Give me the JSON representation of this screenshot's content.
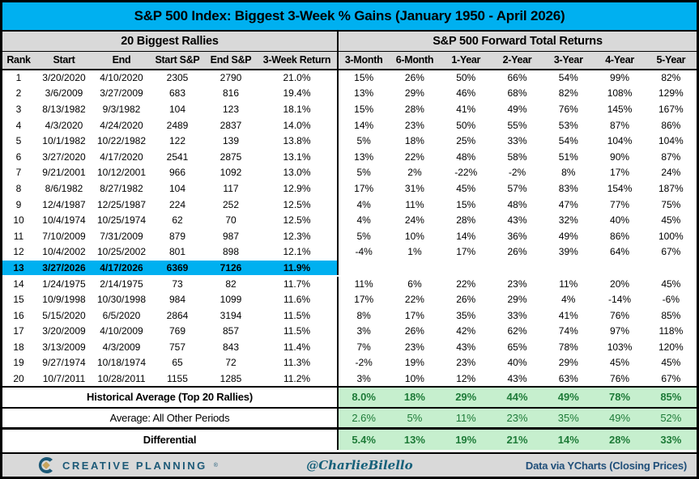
{
  "title": "S&P 500 Index: Biggest 3-Week % Gains (January 1950 - April 2026)",
  "footer": {
    "brand": "CREATIVE PLANNING",
    "brand_mark": "®",
    "handle": "@CharlieBilello",
    "source": "Data via YCharts (Closing Prices)"
  },
  "colors": {
    "title_bg": "#00B0F0",
    "header_bg": "#D9D9D9",
    "positive_bg": "#C6EFCE",
    "positive_text": "#2E9C52",
    "negative_bg": "#F8C9D2",
    "negative_text": "#AA3A44",
    "highlight_row_bg": "#00B0F0",
    "highlight_row_right_bg": "#D9D9D9",
    "footer_bg": "#D9D9D9",
    "brand_blue": "#1C5977",
    "brand_gold": "#C9A45C",
    "source_text": "#1F4E79"
  },
  "chart_data": {
    "type": "table",
    "title": "S&P 500 Index: Biggest 3-Week % Gains (January 1950 - April 2026)",
    "section_left": "20 Biggest Rallies",
    "section_right": "S&P 500 Forward Total Returns",
    "columns_left": [
      "Rank",
      "Start",
      "End",
      "Start S&P",
      "End S&P",
      "3-Week Return"
    ],
    "columns_right": [
      "3-Month",
      "6-Month",
      "1-Year",
      "2-Year",
      "3-Year",
      "4-Year",
      "5-Year"
    ],
    "rows": [
      {
        "rank": "1",
        "start": "3/20/2020",
        "end": "4/10/2020",
        "start_sp": "2305",
        "end_sp": "2790",
        "three_week": "21.0%",
        "returns": [
          "15%",
          "26%",
          "50%",
          "66%",
          "54%",
          "99%",
          "82%"
        ],
        "highlight": false
      },
      {
        "rank": "2",
        "start": "3/6/2009",
        "end": "3/27/2009",
        "start_sp": "683",
        "end_sp": "816",
        "three_week": "19.4%",
        "returns": [
          "13%",
          "29%",
          "46%",
          "68%",
          "82%",
          "108%",
          "129%"
        ],
        "highlight": false
      },
      {
        "rank": "3",
        "start": "8/13/1982",
        "end": "9/3/1982",
        "start_sp": "104",
        "end_sp": "123",
        "three_week": "18.1%",
        "returns": [
          "15%",
          "28%",
          "41%",
          "49%",
          "76%",
          "145%",
          "167%"
        ],
        "highlight": false
      },
      {
        "rank": "4",
        "start": "4/3/2020",
        "end": "4/24/2020",
        "start_sp": "2489",
        "end_sp": "2837",
        "three_week": "14.0%",
        "returns": [
          "14%",
          "23%",
          "50%",
          "55%",
          "53%",
          "87%",
          "86%"
        ],
        "highlight": false
      },
      {
        "rank": "5",
        "start": "10/1/1982",
        "end": "10/22/1982",
        "start_sp": "122",
        "end_sp": "139",
        "three_week": "13.8%",
        "returns": [
          "5%",
          "18%",
          "25%",
          "33%",
          "54%",
          "104%",
          "104%"
        ],
        "highlight": false
      },
      {
        "rank": "6",
        "start": "3/27/2020",
        "end": "4/17/2020",
        "start_sp": "2541",
        "end_sp": "2875",
        "three_week": "13.1%",
        "returns": [
          "13%",
          "22%",
          "48%",
          "58%",
          "51%",
          "90%",
          "87%"
        ],
        "highlight": false
      },
      {
        "rank": "7",
        "start": "9/21/2001",
        "end": "10/12/2001",
        "start_sp": "966",
        "end_sp": "1092",
        "three_week": "13.0%",
        "returns": [
          "5%",
          "2%",
          "-22%",
          "-2%",
          "8%",
          "17%",
          "24%"
        ],
        "highlight": false
      },
      {
        "rank": "8",
        "start": "8/6/1982",
        "end": "8/27/1982",
        "start_sp": "104",
        "end_sp": "117",
        "three_week": "12.9%",
        "returns": [
          "17%",
          "31%",
          "45%",
          "57%",
          "83%",
          "154%",
          "187%"
        ],
        "highlight": false
      },
      {
        "rank": "9",
        "start": "12/4/1987",
        "end": "12/25/1987",
        "start_sp": "224",
        "end_sp": "252",
        "three_week": "12.5%",
        "returns": [
          "4%",
          "11%",
          "15%",
          "48%",
          "47%",
          "77%",
          "75%"
        ],
        "highlight": false
      },
      {
        "rank": "10",
        "start": "10/4/1974",
        "end": "10/25/1974",
        "start_sp": "62",
        "end_sp": "70",
        "three_week": "12.5%",
        "returns": [
          "4%",
          "24%",
          "28%",
          "43%",
          "32%",
          "40%",
          "45%"
        ],
        "highlight": false
      },
      {
        "rank": "11",
        "start": "7/10/2009",
        "end": "7/31/2009",
        "start_sp": "879",
        "end_sp": "987",
        "three_week": "12.3%",
        "returns": [
          "5%",
          "10%",
          "14%",
          "36%",
          "49%",
          "86%",
          "100%"
        ],
        "highlight": false
      },
      {
        "rank": "12",
        "start": "10/4/2002",
        "end": "10/25/2002",
        "start_sp": "801",
        "end_sp": "898",
        "three_week": "12.1%",
        "returns": [
          "-4%",
          "1%",
          "17%",
          "26%",
          "39%",
          "64%",
          "67%"
        ],
        "highlight": false
      },
      {
        "rank": "13",
        "start": "3/27/2026",
        "end": "4/17/2026",
        "start_sp": "6369",
        "end_sp": "7126",
        "three_week": "11.9%",
        "returns": [
          "",
          "",
          "",
          "",
          "",
          "",
          ""
        ],
        "highlight": true
      },
      {
        "rank": "14",
        "start": "1/24/1975",
        "end": "2/14/1975",
        "start_sp": "73",
        "end_sp": "82",
        "three_week": "11.7%",
        "returns": [
          "11%",
          "6%",
          "22%",
          "23%",
          "11%",
          "20%",
          "45%"
        ],
        "highlight": false
      },
      {
        "rank": "15",
        "start": "10/9/1998",
        "end": "10/30/1998",
        "start_sp": "984",
        "end_sp": "1099",
        "three_week": "11.6%",
        "returns": [
          "17%",
          "22%",
          "26%",
          "29%",
          "4%",
          "-14%",
          "-6%"
        ],
        "highlight": false
      },
      {
        "rank": "16",
        "start": "5/15/2020",
        "end": "6/5/2020",
        "start_sp": "2864",
        "end_sp": "3194",
        "three_week": "11.5%",
        "returns": [
          "8%",
          "17%",
          "35%",
          "33%",
          "41%",
          "76%",
          "85%"
        ],
        "highlight": false
      },
      {
        "rank": "17",
        "start": "3/20/2009",
        "end": "4/10/2009",
        "start_sp": "769",
        "end_sp": "857",
        "three_week": "11.5%",
        "returns": [
          "3%",
          "26%",
          "42%",
          "62%",
          "74%",
          "97%",
          "118%"
        ],
        "highlight": false
      },
      {
        "rank": "18",
        "start": "3/13/2009",
        "end": "4/3/2009",
        "start_sp": "757",
        "end_sp": "843",
        "three_week": "11.4%",
        "returns": [
          "7%",
          "23%",
          "43%",
          "65%",
          "78%",
          "103%",
          "120%"
        ],
        "highlight": false
      },
      {
        "rank": "19",
        "start": "9/27/1974",
        "end": "10/18/1974",
        "start_sp": "65",
        "end_sp": "72",
        "three_week": "11.3%",
        "returns": [
          "-2%",
          "19%",
          "23%",
          "40%",
          "29%",
          "45%",
          "45%"
        ],
        "highlight": false
      },
      {
        "rank": "20",
        "start": "10/7/2011",
        "end": "10/28/2011",
        "start_sp": "1155",
        "end_sp": "1285",
        "three_week": "11.2%",
        "returns": [
          "3%",
          "10%",
          "12%",
          "43%",
          "63%",
          "76%",
          "67%"
        ],
        "highlight": false
      }
    ],
    "summary_rows": [
      {
        "label": "Historical Average (Top 20 Rallies)",
        "values": [
          "8.0%",
          "18%",
          "29%",
          "44%",
          "49%",
          "78%",
          "85%"
        ],
        "bold": true,
        "thick_top": false
      },
      {
        "label": "Average: All Other Periods",
        "values": [
          "2.6%",
          "5%",
          "11%",
          "23%",
          "35%",
          "49%",
          "52%"
        ],
        "bold": false,
        "thick_top": false
      },
      {
        "label": "Differential",
        "values": [
          "5.4%",
          "13%",
          "19%",
          "21%",
          "14%",
          "28%",
          "33%"
        ],
        "bold": true,
        "thick_top": true
      }
    ]
  }
}
